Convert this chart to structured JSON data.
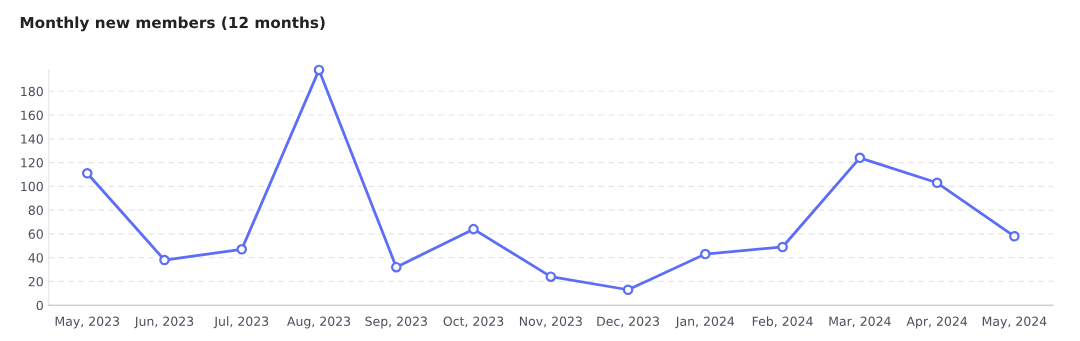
{
  "chart_data": {
    "type": "line",
    "title": "Monthly new members (12 months)",
    "categories": [
      "May, 2023",
      "Jun, 2023",
      "Jul, 2023",
      "Aug, 2023",
      "Sep, 2023",
      "Oct, 2023",
      "Nov, 2023",
      "Dec, 2023",
      "Jan, 2024",
      "Feb, 2024",
      "Mar, 2024",
      "Apr, 2024",
      "May, 2024"
    ],
    "series": [
      {
        "color": "#5b6ef5",
        "values": [
          111,
          38,
          47,
          198,
          32,
          64,
          24,
          13,
          43,
          49,
          124,
          103,
          58
        ]
      }
    ],
    "ylim": [
      0,
      198
    ],
    "yticks": [
      0,
      20,
      40,
      60,
      80,
      100,
      120,
      140,
      160,
      180
    ],
    "grid": "y",
    "marker": "circle",
    "line_style": "solid",
    "legend": false
  }
}
